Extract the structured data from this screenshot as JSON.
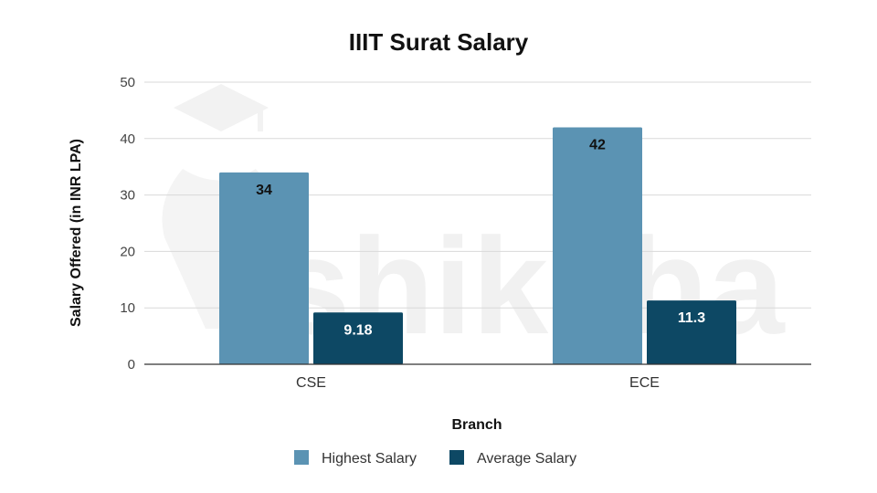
{
  "chart_data": {
    "type": "bar",
    "title": "IIIT Surat Salary",
    "xlabel": "Branch",
    "ylabel": "Salary Offered (in INR LPA)",
    "categories": [
      "CSE",
      "ECE"
    ],
    "ylim": [
      0,
      50
    ],
    "yticks": [
      0,
      10,
      20,
      30,
      40,
      50
    ],
    "grid": true,
    "legend_position": "bottom",
    "series": [
      {
        "name": "Highest Salary",
        "values": [
          34,
          42
        ],
        "labels": [
          "34",
          "42"
        ],
        "color": "#5b93b3",
        "label_color": "#111111"
      },
      {
        "name": "Average Salary",
        "values": [
          9.18,
          11.3
        ],
        "labels": [
          "9.18",
          "11.3"
        ],
        "color": "#0d4864",
        "label_color": "#ffffff"
      }
    ]
  },
  "watermark": {
    "text": "shiksha"
  }
}
